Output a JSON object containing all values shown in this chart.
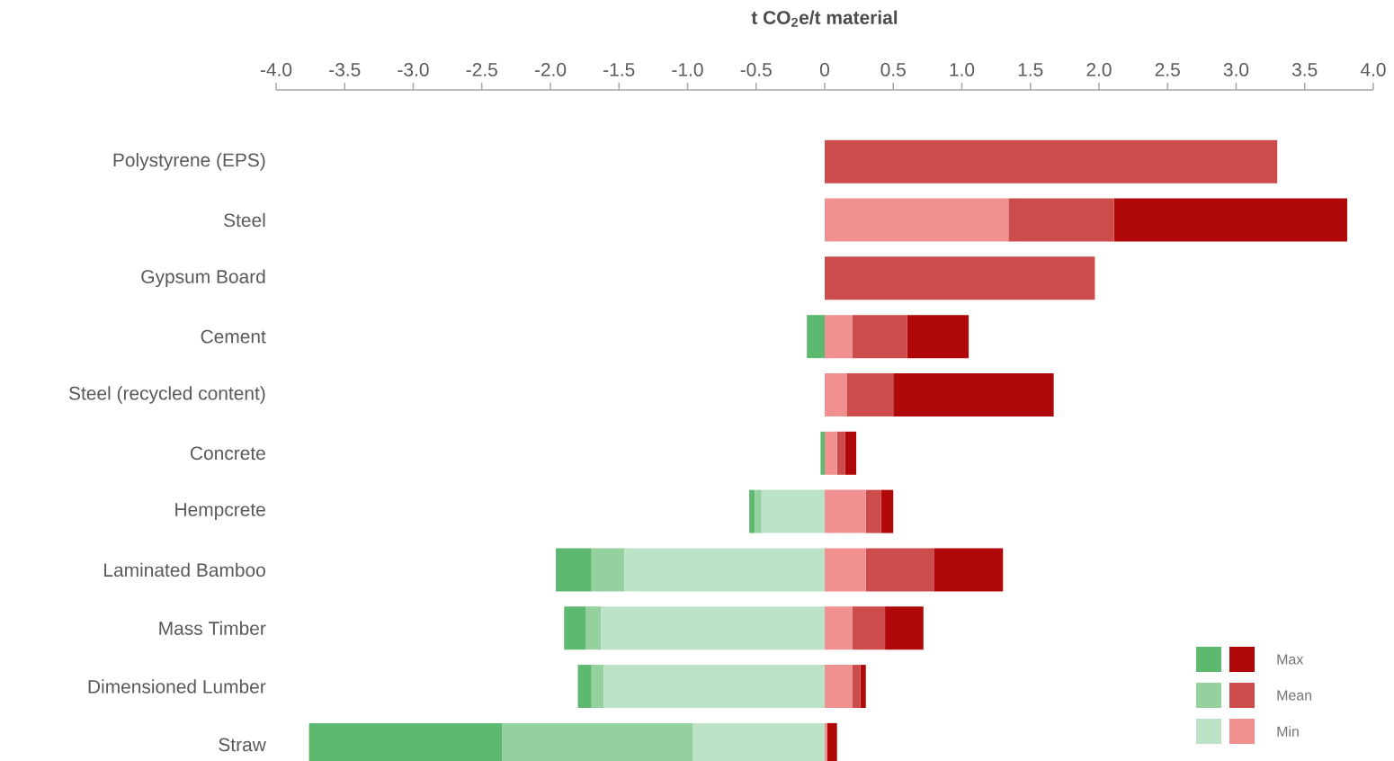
{
  "chart_data": {
    "type": "bar",
    "orientation": "horizontal",
    "stacked": true,
    "xlabel": "t CO$_{2}$e/t material",
    "categories": [
      "Polystyrene (EPS)",
      "Steel",
      "Gypsum Board",
      "Cement",
      "Steel (recycled content)",
      "Concrete",
      "Hempcrete",
      "Laminated Bamboo",
      "Mass Timber",
      "Dimensioned Lumber",
      "Straw"
    ],
    "series": [
      {
        "name": "Min",
        "color": "#f09090",
        "values": [
          0,
          1.34,
          0,
          0.2,
          0.16,
          0.09,
          0.3,
          0.3,
          0.2,
          0.2,
          0.02
        ]
      },
      {
        "name": "Mean",
        "color": "#cc4c4c",
        "values": [
          3.3,
          0.77,
          1.97,
          0.4,
          0.34,
          0.06,
          0.11,
          0.5,
          0.24,
          0.06,
          0
        ]
      },
      {
        "name": "Max",
        "color": "#b00808",
        "values": [
          0,
          1.7,
          0,
          0.45,
          1.17,
          0.08,
          0.09,
          0.5,
          0.28,
          0.04,
          0.07
        ]
      },
      {
        "color": "#bce3c6",
        "values": [
          0,
          0,
          0,
          0,
          0,
          0,
          -0.46,
          -1.46,
          -1.63,
          -1.61,
          -0.96
        ]
      },
      {
        "color": "#95d09f",
        "values": [
          0,
          0,
          0,
          0,
          0,
          0,
          -0.05,
          -0.24,
          -0.11,
          -0.09,
          -1.39
        ]
      },
      {
        "color": "#5cb96f",
        "values": [
          0,
          0,
          0,
          -0.13,
          0,
          -0.03,
          -0.04,
          -0.26,
          -0.16,
          -0.1,
          -1.41
        ]
      }
    ],
    "xlim": [
      -4,
      4
    ],
    "xticks": [
      {
        "value": -4,
        "label": "-4.0"
      },
      {
        "value": -3.5,
        "label": "-3.5"
      },
      {
        "value": -3,
        "label": "-3.0"
      },
      {
        "value": -2.5,
        "label": "-2.5"
      },
      {
        "value": -2,
        "label": "-2.0"
      },
      {
        "value": -1.5,
        "label": "-1.5"
      },
      {
        "value": -1,
        "label": "-1.0"
      },
      {
        "value": -0.5,
        "label": "-0.5"
      },
      0,
      {
        "value": 0.5,
        "label": "0.5"
      },
      {
        "value": 1,
        "label": "1.0"
      },
      {
        "value": 1.5,
        "label": "1.5"
      },
      {
        "value": 2,
        "label": "2.0"
      },
      {
        "value": 2.5,
        "label": "2.5"
      },
      {
        "value": 3,
        "label": "3.0"
      },
      {
        "value": 3.5,
        "label": "3.5"
      },
      {
        "value": 4,
        "label": "4.0"
      }
    ],
    "legend": "bottom right"
  }
}
